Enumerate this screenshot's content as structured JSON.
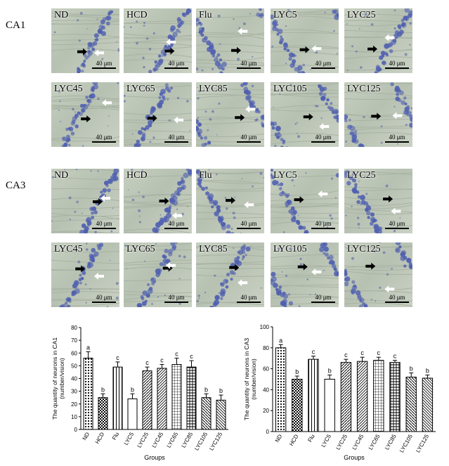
{
  "sections": [
    {
      "label": "CA1",
      "rows": [
        [
          "ND",
          "HCD",
          "Flu",
          "LYC5",
          "LYC25"
        ],
        [
          "LYC45",
          "LYC65",
          "LYC85",
          "LYC105",
          "LYC125"
        ]
      ]
    },
    {
      "label": "CA3",
      "rows": [
        [
          "ND",
          "HCD",
          "Flu",
          "LYC5",
          "LYC25"
        ],
        [
          "LYC45",
          "LYC65",
          "LYC85",
          "LYC105",
          "LYC125"
        ]
      ]
    }
  ],
  "scale_text": "40 μm",
  "colors": {
    "stain": "#4f5fb0",
    "background": "#c3ccbd",
    "arrow_black": "#000000",
    "arrow_white": "#ffffff"
  },
  "chart_data": [
    {
      "type": "bar",
      "ylabel": "The quantity of neurons in CA1 (number/vision)",
      "xlabel": "Groups",
      "categories": [
        "ND",
        "HCD",
        "Flu",
        "LYC5",
        "LYC25",
        "LYC45",
        "LYC65",
        "LYC85",
        "LYC105",
        "LYC125"
      ],
      "values": [
        56,
        25,
        49,
        24,
        46,
        48,
        51,
        49,
        25,
        23
      ],
      "errors": [
        5,
        3,
        4,
        4,
        3,
        3,
        5,
        5,
        3,
        4
      ],
      "letters": [
        "a",
        "b",
        "c",
        "b",
        "c",
        "c",
        "c",
        "c",
        "b",
        "b"
      ],
      "ylim": [
        0,
        80
      ],
      "yticks": [
        0,
        10,
        20,
        30,
        40,
        50,
        60,
        70,
        80
      ]
    },
    {
      "type": "bar",
      "ylabel": "The quantity of neurons in CA3 (number/vision)",
      "xlabel": "Groups",
      "categories": [
        "ND",
        "HCD",
        "Flu",
        "LYC5",
        "LYC25",
        "LYC45",
        "LYC65",
        "LYC85",
        "LYC105",
        "LYC125"
      ],
      "values": [
        80,
        50,
        69,
        50,
        66,
        67,
        68,
        66,
        52,
        51
      ],
      "errors": [
        3,
        3,
        3,
        4,
        3,
        4,
        3,
        2,
        4,
        3
      ],
      "letters": [
        "a",
        "b",
        "c",
        "b",
        "c",
        "c",
        "c",
        "c",
        "b",
        "b"
      ],
      "ylim": [
        0,
        100
      ],
      "yticks": [
        0,
        20,
        40,
        60,
        80,
        100
      ]
    }
  ]
}
